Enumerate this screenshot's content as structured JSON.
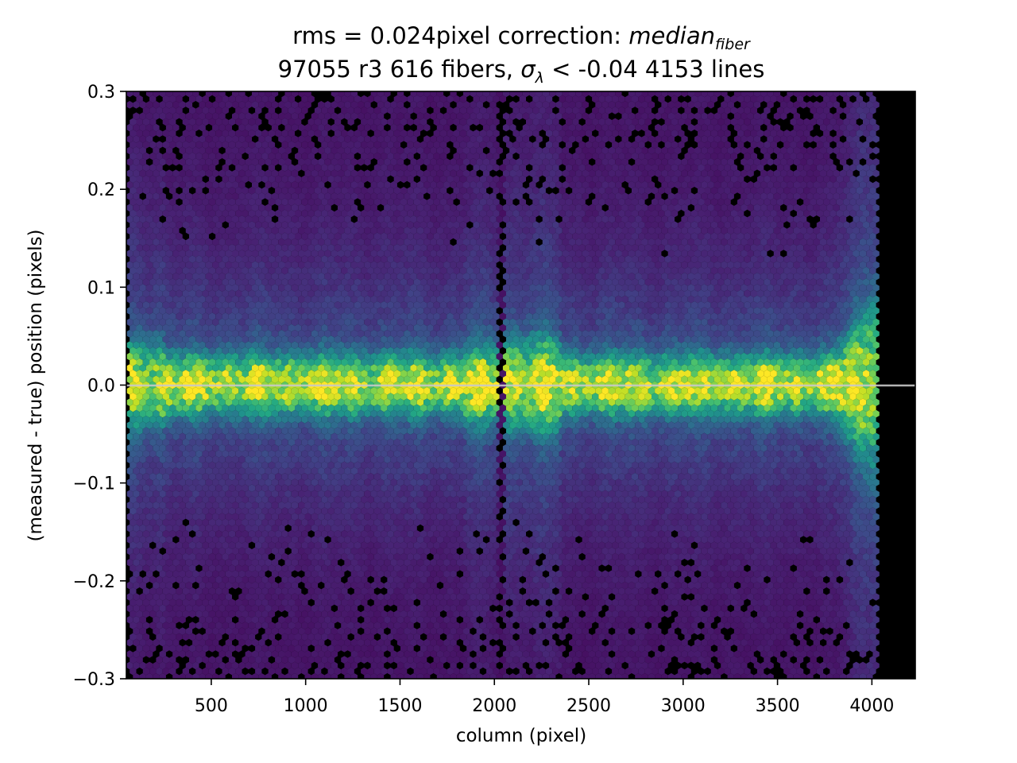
{
  "chart_data": {
    "type": "heatmap",
    "subtype": "hexbin",
    "title": {
      "line1": {
        "prefix": "rms = 0.024pixel correction: ",
        "math_main": "median",
        "math_sub": "fiber"
      },
      "line2": {
        "prefix": "97055 r3   616 fibers, ",
        "math_symbol": "σ",
        "math_sub": "λ",
        "suffix": " < -0.04 4153 lines"
      }
    },
    "xlabel": "column (pixel)",
    "ylabel": "(measured - true) position (pixels)",
    "xlim": [
      50,
      4230
    ],
    "ylim": [
      -0.3,
      0.3
    ],
    "xticks": [
      500,
      1000,
      1500,
      2000,
      2500,
      3000,
      3500,
      4000
    ],
    "xtick_labels": [
      "500",
      "1000",
      "1500",
      "2000",
      "2500",
      "3000",
      "3500",
      "4000"
    ],
    "yticks": [
      -0.3,
      -0.2,
      -0.1,
      0.0,
      0.1,
      0.2,
      0.3
    ],
    "ytick_labels": [
      "−0.3",
      "−0.2",
      "−0.1",
      "0.0",
      "0.1",
      "0.2",
      "0.3"
    ],
    "colormap": "viridis",
    "background_color": "#000000",
    "zero_line": {
      "y": 0.0,
      "color": "#c8c8c8"
    },
    "density_model": {
      "x_range": [
        55,
        4030
      ],
      "peak_y": 0.0,
      "core_halfwidth": 0.03,
      "gap_columns": [
        2010,
        2060
      ],
      "edge_flare_columns": [
        3800,
        4030
      ]
    },
    "grid": false,
    "legend": "none"
  }
}
